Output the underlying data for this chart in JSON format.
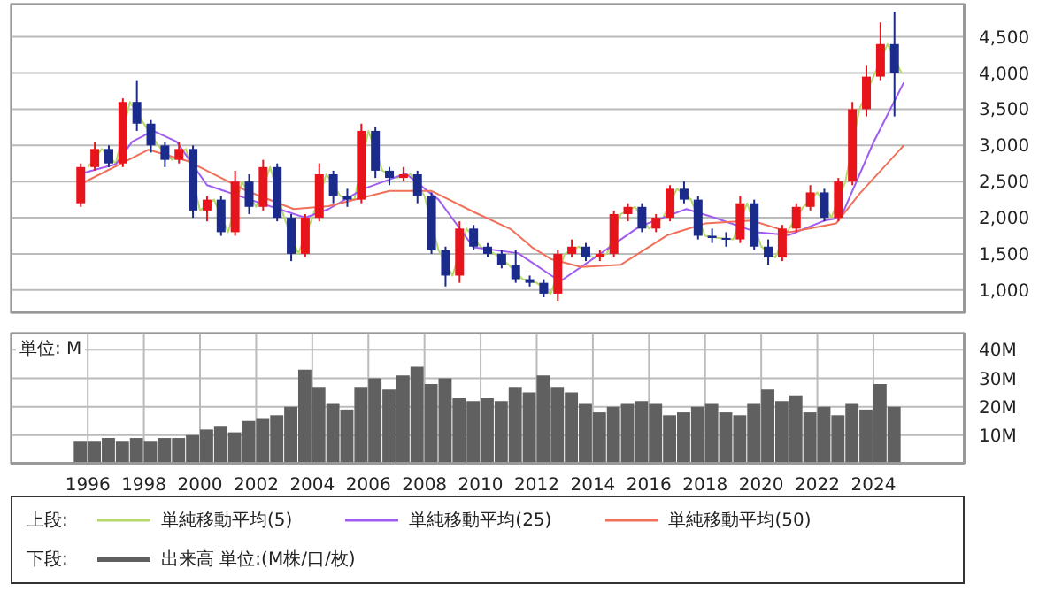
{
  "chart_data": [
    {
      "type": "candlestick",
      "legend": "bottom",
      "legend_title": "上段:",
      "tick_labels": "y",
      "grid": true,
      "xlim": [
        "1993-04",
        "2027-04"
      ],
      "xticks": [
        "1996",
        "1998",
        "2000",
        "2002",
        "2004",
        "2006",
        "2008",
        "2010",
        "2012",
        "2014",
        "2016",
        "2018",
        "2020",
        "2022",
        "2024"
      ],
      "ylim": [
        680,
        4960
      ],
      "yticks": [
        {
          "value": 1000,
          "label": "1,000"
        },
        {
          "value": 1500,
          "label": "1,500"
        },
        {
          "value": 2000,
          "label": "2,000"
        },
        {
          "value": 2500,
          "label": "2,500"
        },
        {
          "value": 3000,
          "label": "3,000"
        },
        {
          "value": 3500,
          "label": "3,500"
        },
        {
          "value": 4000,
          "label": "4,000"
        },
        {
          "value": 4500,
          "label": "4,500"
        }
      ],
      "x": [
        "1995-10",
        "1996-04",
        "1996-10",
        "1997-04",
        "1997-10",
        "1998-04",
        "1998-10",
        "1999-04",
        "1999-10",
        "2000-04",
        "2000-10",
        "2001-04",
        "2001-10",
        "2002-04",
        "2002-10",
        "2003-04",
        "2003-10",
        "2004-04",
        "2004-10",
        "2005-04",
        "2005-10",
        "2006-04",
        "2006-10",
        "2007-04",
        "2007-10",
        "2008-04",
        "2008-10",
        "2009-04",
        "2009-10",
        "2010-04",
        "2010-10",
        "2011-04",
        "2011-10",
        "2012-04",
        "2012-10",
        "2013-04",
        "2013-10",
        "2014-04",
        "2014-10",
        "2015-04",
        "2015-10",
        "2016-04",
        "2016-10",
        "2017-04",
        "2017-10",
        "2018-04",
        "2018-10",
        "2019-04",
        "2019-10",
        "2020-04",
        "2020-10",
        "2021-04",
        "2021-10",
        "2022-04",
        "2022-10",
        "2023-04",
        "2023-10",
        "2024-04",
        "2024-10"
      ],
      "ohlc": [
        [
          2200,
          2750,
          2150,
          2700
        ],
        [
          2700,
          3050,
          2650,
          2950
        ],
        [
          2950,
          3000,
          2700,
          2750
        ],
        [
          2750,
          3650,
          2700,
          3600
        ],
        [
          3600,
          3900,
          3200,
          3300
        ],
        [
          3300,
          3350,
          2900,
          3000
        ],
        [
          3000,
          3050,
          2700,
          2800
        ],
        [
          2800,
          3050,
          2750,
          2950
        ],
        [
          2950,
          3000,
          2000,
          2100
        ],
        [
          2100,
          2300,
          1950,
          2250
        ],
        [
          2250,
          2300,
          1750,
          1800
        ],
        [
          1800,
          2650,
          1750,
          2500
        ],
        [
          2500,
          2600,
          2050,
          2150
        ],
        [
          2150,
          2800,
          2100,
          2700
        ],
        [
          2700,
          2750,
          1950,
          2000
        ],
        [
          2000,
          2050,
          1400,
          1500
        ],
        [
          1500,
          2050,
          1450,
          2000
        ],
        [
          2000,
          2750,
          1950,
          2600
        ],
        [
          2600,
          2650,
          2200,
          2300
        ],
        [
          2300,
          2400,
          2150,
          2250
        ],
        [
          2250,
          3300,
          2200,
          3200
        ],
        [
          3200,
          3250,
          2550,
          2650
        ],
        [
          2650,
          2700,
          2450,
          2550
        ],
        [
          2550,
          2700,
          2500,
          2600
        ],
        [
          2600,
          2650,
          2200,
          2300
        ],
        [
          2300,
          2350,
          1500,
          1550
        ],
        [
          1550,
          1600,
          1050,
          1200
        ],
        [
          1200,
          1950,
          1100,
          1850
        ],
        [
          1850,
          1900,
          1550,
          1600
        ],
        [
          1600,
          1650,
          1450,
          1500
        ],
        [
          1500,
          1550,
          1300,
          1350
        ],
        [
          1350,
          1550,
          1100,
          1150
        ],
        [
          1150,
          1200,
          1050,
          1100
        ],
        [
          1100,
          1150,
          900,
          950
        ],
        [
          950,
          1550,
          850,
          1500
        ],
        [
          1500,
          1700,
          1450,
          1600
        ],
        [
          1600,
          1650,
          1400,
          1450
        ],
        [
          1450,
          1550,
          1400,
          1500
        ],
        [
          1500,
          2100,
          1450,
          2050
        ],
        [
          2050,
          2200,
          1950,
          2150
        ],
        [
          2150,
          2200,
          1800,
          1850
        ],
        [
          1850,
          2050,
          1800,
          2000
        ],
        [
          2000,
          2450,
          1950,
          2400
        ],
        [
          2400,
          2500,
          2200,
          2250
        ],
        [
          2250,
          2300,
          1700,
          1750
        ],
        [
          1750,
          1850,
          1650,
          1720
        ],
        [
          1720,
          1800,
          1600,
          1700
        ],
        [
          1700,
          2300,
          1650,
          2200
        ],
        [
          2200,
          2250,
          1550,
          1600
        ],
        [
          1600,
          1700,
          1350,
          1450
        ],
        [
          1450,
          1900,
          1400,
          1850
        ],
        [
          1850,
          2200,
          1800,
          2150
        ],
        [
          2150,
          2450,
          2100,
          2350
        ],
        [
          2350,
          2400,
          1950,
          2000
        ],
        [
          2000,
          2550,
          1950,
          2500
        ],
        [
          2500,
          3600,
          2450,
          3500
        ],
        [
          3500,
          4100,
          3400,
          3950
        ],
        [
          3950,
          4700,
          3900,
          4400
        ],
        [
          4400,
          4850,
          3400,
          4000
        ]
      ],
      "series": [
        {
          "type": "line",
          "name": "単純移動平均(5)",
          "color": "#b5d96a",
          "x": [
            "1996-01",
            "1996-07",
            "1997-01",
            "1997-07",
            "1998-01",
            "1998-07",
            "1999-01",
            "1999-07",
            "2000-01",
            "2000-07",
            "2001-01",
            "2001-07",
            "2002-01",
            "2002-07",
            "2003-01",
            "2003-07",
            "2004-01",
            "2004-07",
            "2005-01",
            "2005-07",
            "2006-01",
            "2006-07",
            "2007-01",
            "2007-07",
            "2008-01",
            "2008-07",
            "2009-01",
            "2009-07",
            "2010-01",
            "2010-07",
            "2011-01",
            "2011-07",
            "2012-01",
            "2012-07",
            "2013-01",
            "2013-07",
            "2014-01",
            "2014-07",
            "2015-01",
            "2015-07",
            "2016-01",
            "2016-07",
            "2017-01",
            "2017-07",
            "2018-01",
            "2018-07",
            "2019-01",
            "2019-07",
            "2020-01",
            "2020-07",
            "2021-01",
            "2021-07",
            "2022-01",
            "2022-07",
            "2023-01",
            "2023-07",
            "2024-01",
            "2024-07",
            "2025-01"
          ],
          "values": [
            2700,
            2950,
            2750,
            3600,
            3300,
            3000,
            2800,
            2950,
            2100,
            2250,
            1800,
            2500,
            2150,
            2700,
            2000,
            1500,
            2000,
            2600,
            2300,
            2250,
            3200,
            2650,
            2550,
            2600,
            2300,
            1550,
            1200,
            1850,
            1600,
            1500,
            1350,
            1150,
            1100,
            950,
            1500,
            1600,
            1450,
            1500,
            2050,
            2150,
            1850,
            2000,
            2400,
            2250,
            1750,
            1720,
            1700,
            2200,
            1600,
            1450,
            1850,
            2150,
            2350,
            2000,
            2500,
            3500,
            3950,
            4400,
            4000
          ]
        },
        {
          "type": "line",
          "name": "単純移動平均(25)",
          "color": "#a05cf0",
          "x": [
            "1995-10",
            "1997-01",
            "1997-08",
            "1998-05",
            "1999-03",
            "2000-04",
            "2002-05",
            "2003-10",
            "2004-08",
            "2005-11",
            "2007-05",
            "2008-07",
            "2009-10",
            "2011-05",
            "2012-11",
            "2014-01",
            "2015-09",
            "2017-05",
            "2018-05",
            "2019-11",
            "2021-01",
            "2022-04",
            "2022-11",
            "2024-01",
            "2025-02"
          ],
          "values": [
            2610,
            2740,
            3050,
            3200,
            3050,
            2450,
            2180,
            2000,
            2120,
            2400,
            2610,
            2250,
            1590,
            1510,
            1120,
            1430,
            1880,
            2120,
            2000,
            1800,
            1760,
            1960,
            2000,
            3040,
            3870
          ]
        },
        {
          "type": "line",
          "name": "単純移動平均(50)",
          "color": "#f0705a",
          "x": [
            "1995-09",
            "1998-03",
            "1999-08",
            "2001-09",
            "2003-05",
            "2004-08",
            "2006-10",
            "2008-04",
            "2009-10",
            "2011-02",
            "2011-11",
            "2012-07",
            "2013-08",
            "2015-01",
            "2016-09",
            "2018-01",
            "2019-09",
            "2021-01",
            "2022-09",
            "2023-07",
            "2025-02"
          ],
          "values": [
            2450,
            2940,
            2780,
            2370,
            2120,
            2160,
            2370,
            2370,
            2080,
            1840,
            1590,
            1430,
            1320,
            1350,
            1760,
            1920,
            1960,
            1800,
            1920,
            2330,
            3000
          ]
        }
      ]
    },
    {
      "type": "bar",
      "legend": "bottom",
      "legend_title": "下段:",
      "grid": true,
      "annotations": [
        "単位: M"
      ],
      "xlim": [
        "1993-04",
        "2027-04"
      ],
      "xticks": [
        "1996",
        "1998",
        "2000",
        "2002",
        "2004",
        "2006",
        "2008",
        "2010",
        "2012",
        "2014",
        "2016",
        "2018",
        "2020",
        "2022",
        "2024"
      ],
      "ylim": [
        0,
        46
      ],
      "yticks": [
        {
          "value": 10,
          "label": "10M"
        },
        {
          "value": 20,
          "label": "20M"
        },
        {
          "value": 30,
          "label": "30M"
        },
        {
          "value": 40,
          "label": "40M"
        }
      ],
      "x": [
        "1995-10",
        "1996-04",
        "1996-10",
        "1997-04",
        "1997-10",
        "1998-04",
        "1998-10",
        "1999-04",
        "1999-10",
        "2000-04",
        "2000-10",
        "2001-04",
        "2001-10",
        "2002-04",
        "2002-10",
        "2003-04",
        "2003-10",
        "2004-04",
        "2004-10",
        "2005-04",
        "2005-10",
        "2006-04",
        "2006-10",
        "2007-04",
        "2007-10",
        "2008-04",
        "2008-10",
        "2009-04",
        "2009-10",
        "2010-04",
        "2010-10",
        "2011-04",
        "2011-10",
        "2012-04",
        "2012-10",
        "2013-04",
        "2013-10",
        "2014-04",
        "2014-10",
        "2015-04",
        "2015-10",
        "2016-04",
        "2016-10",
        "2017-04",
        "2017-10",
        "2018-04",
        "2018-10",
        "2019-04",
        "2019-10",
        "2020-04",
        "2020-10",
        "2021-04",
        "2021-10",
        "2022-04",
        "2022-10",
        "2023-04",
        "2023-10",
        "2024-04",
        "2024-10"
      ],
      "series": [
        {
          "name": "出来高 単位:(M株/口/枚)",
          "color": "#606060",
          "values": [
            8,
            8,
            9,
            8,
            9,
            8,
            9,
            9,
            10,
            12,
            13,
            11,
            15,
            16,
            17,
            20,
            33,
            27,
            21,
            19,
            27,
            30,
            26,
            31,
            34,
            28,
            30,
            23,
            22,
            23,
            22,
            27,
            25,
            31,
            27,
            25,
            21,
            18,
            20,
            21,
            22,
            21,
            17,
            18,
            20,
            21,
            18,
            17,
            21,
            26,
            22,
            24,
            18,
            20,
            17,
            21,
            19,
            28,
            20
          ]
        }
      ]
    }
  ]
}
